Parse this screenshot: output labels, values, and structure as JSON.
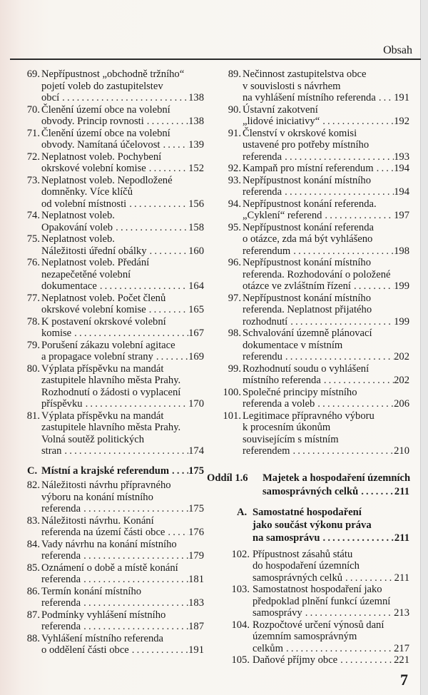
{
  "header": {
    "title": "Obsah"
  },
  "page_number": "7",
  "left_entries": [
    {
      "num": "69.",
      "lines": [
        "Nepřípustnost „obchodně tržního“",
        "pojetí voleb do zastupitelstev",
        "obcí"
      ],
      "page": "138"
    },
    {
      "num": "70.",
      "lines": [
        "Členění území obce na volební",
        "obvody. Princip rovnosti"
      ],
      "page": "138"
    },
    {
      "num": "71.",
      "lines": [
        "Členění území obce na volební",
        "obvody. Namítaná účelovost"
      ],
      "page": "139"
    },
    {
      "num": "72.",
      "lines": [
        "Neplatnost voleb. Pochybení",
        "okrskové volební komise"
      ],
      "page": "152"
    },
    {
      "num": "73.",
      "lines": [
        "Neplatnost voleb. Nepodložené",
        "domněnky. Více klíčů",
        "od volební místnosti"
      ],
      "page": "156"
    },
    {
      "num": "74.",
      "lines": [
        "Neplatnost voleb.",
        "Opakování voleb"
      ],
      "page": "158"
    },
    {
      "num": "75.",
      "lines": [
        "Neplatnost voleb.",
        "Náležitosti úřední obálky"
      ],
      "page": "160"
    },
    {
      "num": "76.",
      "lines": [
        "Neplatnost voleb. Předání",
        "nezapečetěné volební",
        "dokumentace"
      ],
      "page": "164"
    },
    {
      "num": "77.",
      "lines": [
        "Neplatnost voleb. Počet členů",
        "okrskové volební komise"
      ],
      "page": "165"
    },
    {
      "num": "78.",
      "lines": [
        "K postavení okrskové volební",
        "komise"
      ],
      "page": "167"
    },
    {
      "num": "79.",
      "lines": [
        "Porušení zákazu volební agitace",
        "a propagace volební strany"
      ],
      "page": "169"
    },
    {
      "num": "80.",
      "lines": [
        "Výplata příspěvku na mandát",
        "zastupitele hlavního města Prahy.",
        "Rozhodnutí o žádosti o vyplacení",
        "příspěvku"
      ],
      "page": "170"
    },
    {
      "num": "81.",
      "lines": [
        "Výplata příspěvku na mandát",
        "zastupitele hlavního města Prahy.",
        "Volná soutěž politických",
        "stran"
      ],
      "page": "174"
    }
  ],
  "section_c": {
    "num": "C.",
    "lines": [
      "Místní a krajské referendum"
    ],
    "page": "175"
  },
  "left_entries_2": [
    {
      "num": "82.",
      "lines": [
        "Náležitosti návrhu přípravného",
        "výboru na konání místního",
        "referenda"
      ],
      "page": "175"
    },
    {
      "num": "83.",
      "lines": [
        "Náležitosti návrhu. Konání",
        "referenda na území části obce"
      ],
      "page": "176"
    },
    {
      "num": "84.",
      "lines": [
        "Vady návrhu na konání místního",
        "referenda"
      ],
      "page": "179"
    },
    {
      "num": "85.",
      "lines": [
        "Oznámení o době a místě konání",
        "referenda"
      ],
      "page": "181"
    },
    {
      "num": "86.",
      "lines": [
        "Termín konání místního",
        "referenda"
      ],
      "page": "183"
    },
    {
      "num": "87.",
      "lines": [
        "Podmínky vyhlášení místního",
        "referenda"
      ],
      "page": "187"
    },
    {
      "num": "88.",
      "lines": [
        "Vyhlášení místního referenda",
        "o oddělení části obce"
      ],
      "page": "191"
    }
  ],
  "right_entries": [
    {
      "num": "89.",
      "lines": [
        "Nečinnost zastupitelstva obce",
        "v souvislosti s návrhem",
        "na vyhlášení místního referenda"
      ],
      "page": "191"
    },
    {
      "num": "90.",
      "lines": [
        "Ústavní zakotvení",
        "„lidové iniciativy“"
      ],
      "page": "192"
    },
    {
      "num": "91.",
      "lines": [
        "Členství v okrskové komisi",
        "ustavené pro potřeby místního",
        "referenda"
      ],
      "page": "193"
    },
    {
      "num": "92.",
      "lines": [
        "Kampaň pro místní referendum"
      ],
      "page": "194"
    },
    {
      "num": "93.",
      "lines": [
        "Nepřípustnost konání místního",
        "referenda"
      ],
      "page": "194"
    },
    {
      "num": "94.",
      "lines": [
        "Nepřípustnost konání referenda.",
        "„Cyklení“ referend"
      ],
      "page": "197"
    },
    {
      "num": "95.",
      "lines": [
        "Nepřípustnost konání referenda",
        "o otázce, zda má být vyhlášeno",
        "referendum"
      ],
      "page": "198"
    },
    {
      "num": "96.",
      "lines": [
        "Nepřípustnost konání místního",
        "referenda. Rozhodování o položené",
        "otázce ve zvláštním řízení"
      ],
      "page": "199"
    },
    {
      "num": "97.",
      "lines": [
        "Nepřípustnost konání místního",
        "referenda. Neplatnost přijatého",
        "rozhodnutí"
      ],
      "page": "199"
    },
    {
      "num": "98.",
      "lines": [
        "Schvalování územně plánovací",
        "dokumentace v místním",
        "referendu"
      ],
      "page": "202"
    },
    {
      "num": "99.",
      "lines": [
        "Rozhodnutí soudu o vyhlášení",
        "místního referenda"
      ],
      "page": "202"
    },
    {
      "num": "100.",
      "lines": [
        "Společné principy místního",
        "referenda a voleb"
      ],
      "page": "206"
    },
    {
      "num": "101.",
      "lines": [
        "Legitimace přípravného výboru",
        "k procesním úkonům",
        "souvisejícím s místním",
        "referendem"
      ],
      "page": "210"
    }
  ],
  "oddil": {
    "label": "Oddíl 1.6",
    "lines": [
      "Majetek a hospodaření územních",
      "samosprávných celků"
    ],
    "page": "211"
  },
  "subsection_a": {
    "num": "A.",
    "lines": [
      "Samostatné hospodaření",
      "jako součást výkonu práva",
      "na samosprávu"
    ],
    "page": "211"
  },
  "right_entries_2": [
    {
      "num": "102.",
      "lines": [
        "Přípustnost zásahů státu",
        "do hospodaření územních",
        "samosprávných celků"
      ],
      "page": "211"
    },
    {
      "num": "103.",
      "lines": [
        "Samostatnost hospodaření jako",
        "předpoklad plnění funkcí územní",
        "samosprávy"
      ],
      "page": "213"
    },
    {
      "num": "104.",
      "lines": [
        "Rozpočtové určení výnosů daní",
        "územním samosprávným",
        "celkům"
      ],
      "page": "217"
    },
    {
      "num": "105.",
      "lines": [
        "Daňové příjmy obce"
      ],
      "page": "221"
    }
  ]
}
